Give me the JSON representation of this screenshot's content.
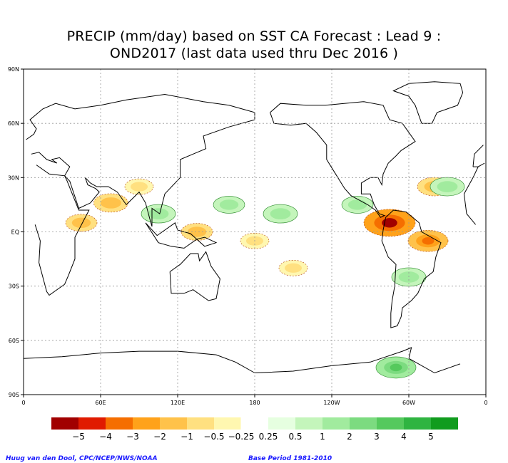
{
  "title_line1": "PRECIP (mm/day) based on SST CA Forecast : Lead 9 :",
  "title_line2": "OND2017 (last data used thru Dec 2016 )",
  "credit_left": "Huug van den Dool, CPC/NCEP/NWS/NOAA",
  "credit_right": "Base Period 1981-2010",
  "chart_data": {
    "type": "heatmap",
    "title": "PRECIP (mm/day) based on SST CA Forecast : Lead 9 : OND2017 (last data used thru Dec 2016 )",
    "x_ticks": [
      "0",
      "60E",
      "120E",
      "180",
      "120W",
      "60W",
      "0"
    ],
    "y_ticks": [
      "90N",
      "60N",
      "30N",
      "EQ",
      "30S",
      "60S",
      "90S"
    ],
    "grid": true,
    "legend": {
      "position": "bottom",
      "colors": [
        "#a10000",
        "#e01a00",
        "#f56e00",
        "#ffa21a",
        "#ffc24a",
        "#ffe080",
        "#fff7b0",
        "#ffffff",
        "#e6ffe0",
        "#c4f5bb",
        "#a1eb9e",
        "#7cdb80",
        "#55c95d",
        "#2fb441",
        "#109c1e"
      ],
      "labels": [
        "−5",
        "−4",
        "−3",
        "−2",
        "−1",
        "−0.5",
        "−0.25",
        "0.25",
        "0.5",
        "1",
        "2",
        "3",
        "4",
        "5"
      ]
    },
    "anomaly_regions": [
      {
        "lon": 45,
        "lat": 5,
        "value": -1.5
      },
      {
        "lon": 68,
        "lat": 16,
        "value": -2
      },
      {
        "lon": 90,
        "lat": 25,
        "value": -1
      },
      {
        "lon": 135,
        "lat": 0,
        "value": -1.5
      },
      {
        "lon": 180,
        "lat": -5,
        "value": -1
      },
      {
        "lon": 210,
        "lat": -20,
        "value": -1
      },
      {
        "lon": 285,
        "lat": 5,
        "value": -5
      },
      {
        "lon": 315,
        "lat": -5,
        "value": -3
      },
      {
        "lon": 320,
        "lat": 25,
        "value": -2
      },
      {
        "lon": 105,
        "lat": 10,
        "value": 2
      },
      {
        "lon": 160,
        "lat": 15,
        "value": 1.5
      },
      {
        "lon": 200,
        "lat": 10,
        "value": 2
      },
      {
        "lon": 260,
        "lat": 15,
        "value": 1.5
      },
      {
        "lon": 300,
        "lat": -25,
        "value": 2
      },
      {
        "lon": 330,
        "lat": 25,
        "value": 2
      },
      {
        "lon": 290,
        "lat": -75,
        "value": 3
      }
    ]
  }
}
